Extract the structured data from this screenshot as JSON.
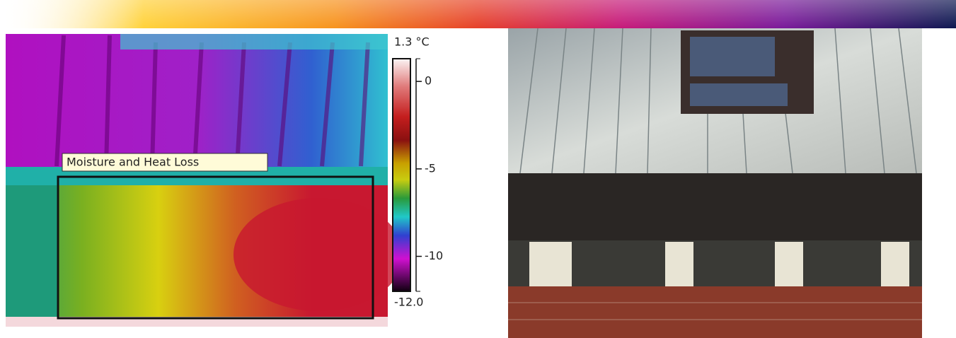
{
  "annotation": "Moisture and Heat Loss",
  "scale": {
    "max": {
      "value": 1.3,
      "label": "1.3 °C"
    },
    "min": {
      "value": -12.0,
      "label": "-12.0"
    },
    "ticks": [
      0,
      -5,
      -10
    ]
  }
}
